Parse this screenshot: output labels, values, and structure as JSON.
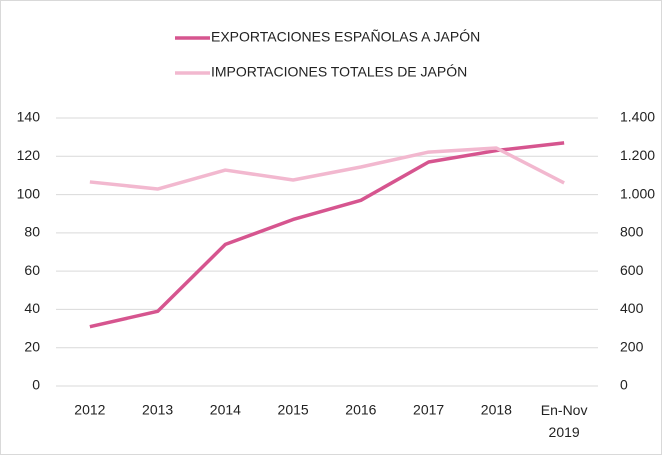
{
  "chart_data": {
    "type": "line",
    "categories": [
      "2012",
      "2013",
      "2014",
      "2015",
      "2016",
      "2017",
      "2018",
      "En-Nov 2019"
    ],
    "series": [
      {
        "name": "EXPORTACIONES ESPAÑOLAS A JAPÓN",
        "color": "#d6558f",
        "values": [
          31,
          39,
          74,
          87,
          97,
          117,
          123,
          127
        ]
      },
      {
        "name": "IMPORTACIONES TOTALES DE JAPÓN",
        "color": "#f2b8cf",
        "axis": "y2",
        "values": [
          1066,
          1029,
          1128,
          1076,
          1144,
          1222,
          1243,
          1061
        ]
      }
    ],
    "ylim": [
      0,
      140
    ],
    "yticks": [
      0,
      20,
      40,
      60,
      80,
      100,
      120,
      140
    ],
    "y2lim": [
      0,
      1400
    ],
    "y2ticks": [
      0,
      200,
      400,
      600,
      800,
      {
        "value": 1000,
        "label": "1.000"
      },
      {
        "value": 1200,
        "label": "1.200"
      },
      {
        "value": 1400,
        "label": "1.400"
      }
    ],
    "legend": "top"
  }
}
